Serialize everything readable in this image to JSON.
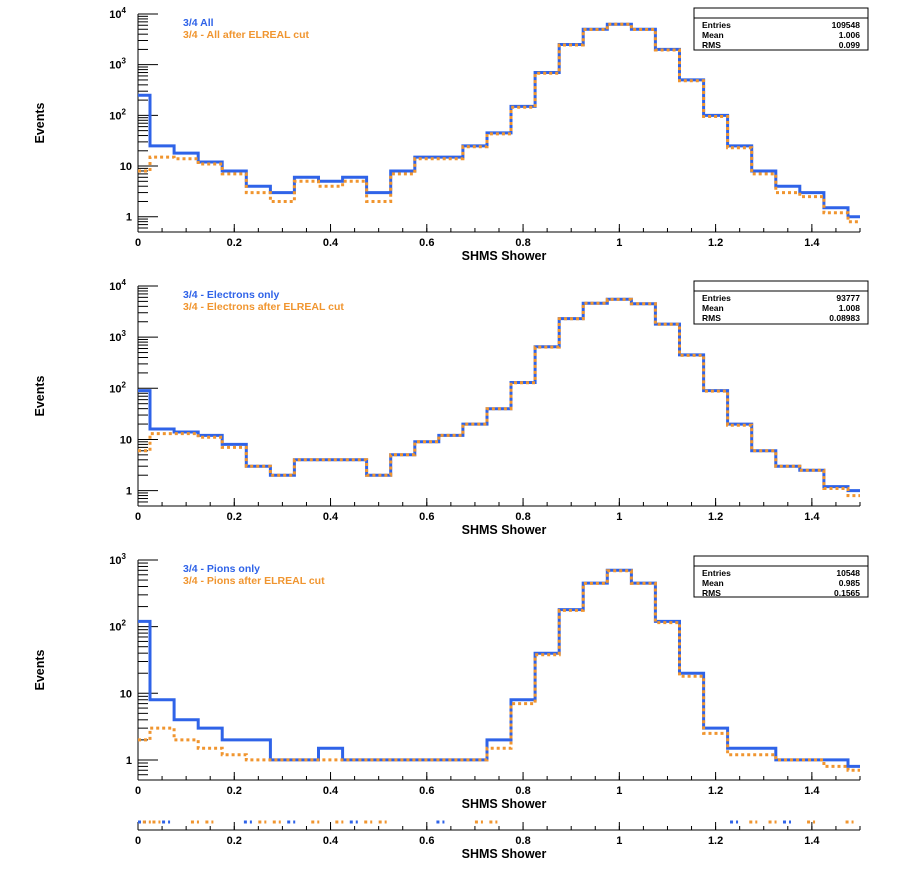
{
  "colors": {
    "all": "#2f63e8",
    "cut": "#f0952f",
    "axis": "#000000",
    "background": "#ffffff"
  },
  "chart_data": [
    {
      "type": "line",
      "panel": "all",
      "xlabel": "SHMS Shower",
      "ylabel": "Events",
      "xlim": [
        0,
        1.5
      ],
      "ylim": [
        0.5,
        10000
      ],
      "yscale": "log",
      "x_ticks": [
        "0",
        "0.2",
        "0.4",
        "0.6",
        "0.8",
        "1",
        "1.2",
        "1.4"
      ],
      "y_ticks": [
        "1",
        "10",
        "10^2",
        "10^3",
        "10^4"
      ],
      "legend_position": "top-left",
      "series": [
        {
          "name": "3/4 All",
          "style": "solid",
          "x": [
            0.0,
            0.05,
            0.1,
            0.15,
            0.2,
            0.25,
            0.3,
            0.35,
            0.4,
            0.45,
            0.5,
            0.55,
            0.6,
            0.65,
            0.7,
            0.75,
            0.8,
            0.85,
            0.9,
            0.95,
            1.0,
            1.05,
            1.1,
            1.15,
            1.2,
            1.25,
            1.3,
            1.35,
            1.4,
            1.45,
            1.5
          ],
          "y": [
            250,
            25,
            18,
            12,
            8,
            4,
            3,
            6,
            5,
            6,
            3,
            8,
            15,
            15,
            25,
            45,
            150,
            700,
            2500,
            5000,
            6300,
            5000,
            2000,
            500,
            100,
            25,
            8,
            4,
            3,
            1.5,
            1
          ]
        },
        {
          "name": "3/4 - All after ELREAL cut",
          "style": "dashed",
          "x": [
            0.0,
            0.05,
            0.1,
            0.15,
            0.2,
            0.25,
            0.3,
            0.35,
            0.4,
            0.45,
            0.5,
            0.55,
            0.6,
            0.65,
            0.7,
            0.75,
            0.8,
            0.85,
            0.9,
            0.95,
            1.0,
            1.05,
            1.1,
            1.15,
            1.2,
            1.25,
            1.3,
            1.35,
            1.4,
            1.45,
            1.5
          ],
          "y": [
            8,
            15,
            14,
            11,
            7,
            3,
            2,
            5,
            4,
            5,
            2,
            7,
            14,
            14,
            24,
            43,
            145,
            680,
            2450,
            4950,
            6250,
            4950,
            1950,
            480,
            95,
            23,
            7,
            3,
            2.5,
            1.2,
            0.8
          ]
        }
      ],
      "stats": {
        "title": "",
        "entries": "109548",
        "mean": "1.006",
        "rms": "0.099"
      }
    },
    {
      "type": "line",
      "panel": "electrons",
      "xlabel": "SHMS Shower",
      "ylabel": "Events",
      "xlim": [
        0,
        1.5
      ],
      "ylim": [
        0.5,
        10000
      ],
      "yscale": "log",
      "x_ticks": [
        "0",
        "0.2",
        "0.4",
        "0.6",
        "0.8",
        "1",
        "1.2",
        "1.4"
      ],
      "y_ticks": [
        "1",
        "10",
        "10^2",
        "10^3",
        "10^4"
      ],
      "legend_position": "top-left",
      "series": [
        {
          "name": "3/4 - Electrons only",
          "style": "solid",
          "x": [
            0.0,
            0.05,
            0.1,
            0.15,
            0.2,
            0.25,
            0.3,
            0.35,
            0.4,
            0.45,
            0.5,
            0.55,
            0.6,
            0.65,
            0.7,
            0.75,
            0.8,
            0.85,
            0.9,
            0.95,
            1.0,
            1.05,
            1.1,
            1.15,
            1.2,
            1.25,
            1.3,
            1.35,
            1.4,
            1.45,
            1.5
          ],
          "y": [
            90,
            16,
            14,
            12,
            8,
            3,
            2,
            4,
            4,
            4,
            2,
            5,
            9,
            12,
            20,
            40,
            130,
            650,
            2300,
            4600,
            5500,
            4500,
            1800,
            450,
            90,
            20,
            6,
            3,
            2.5,
            1.2,
            1
          ]
        },
        {
          "name": "3/4 - Electrons after ELREAL cut",
          "style": "dashed",
          "x": [
            0.0,
            0.05,
            0.1,
            0.15,
            0.2,
            0.25,
            0.3,
            0.35,
            0.4,
            0.45,
            0.5,
            0.55,
            0.6,
            0.65,
            0.7,
            0.75,
            0.8,
            0.85,
            0.9,
            0.95,
            1.0,
            1.05,
            1.1,
            1.15,
            1.2,
            1.25,
            1.3,
            1.35,
            1.4,
            1.45,
            1.5
          ],
          "y": [
            6,
            13,
            13,
            11,
            7,
            3,
            2,
            4,
            4,
            4,
            2,
            5,
            9,
            12,
            20,
            40,
            128,
            640,
            2280,
            4580,
            5480,
            4480,
            1780,
            440,
            88,
            19,
            6,
            3,
            2.5,
            1.1,
            0.8
          ]
        }
      ],
      "stats": {
        "title": "",
        "entries": "93777",
        "mean": "1.008",
        "rms": "0.08983"
      }
    },
    {
      "type": "line",
      "panel": "pions",
      "xlabel": "SHMS Shower",
      "ylabel": "Events",
      "xlim": [
        0,
        1.5
      ],
      "ylim": [
        0.5,
        1000
      ],
      "yscale": "log",
      "x_ticks": [
        "0",
        "0.2",
        "0.4",
        "0.6",
        "0.8",
        "1",
        "1.2",
        "1.4"
      ],
      "y_ticks": [
        "1",
        "10",
        "10^2",
        "10^3"
      ],
      "legend_position": "top-left",
      "series": [
        {
          "name": "3/4 - Pions only",
          "style": "solid",
          "x": [
            0.0,
            0.05,
            0.1,
            0.15,
            0.2,
            0.25,
            0.3,
            0.35,
            0.4,
            0.45,
            0.5,
            0.55,
            0.6,
            0.65,
            0.7,
            0.75,
            0.8,
            0.85,
            0.9,
            0.95,
            1.0,
            1.05,
            1.1,
            1.15,
            1.2,
            1.25,
            1.3,
            1.35,
            1.4,
            1.45,
            1.5
          ],
          "y": [
            120,
            8,
            4,
            3,
            2,
            2,
            1,
            1,
            1.5,
            1,
            1,
            1,
            1,
            1,
            1,
            2,
            8,
            40,
            180,
            450,
            700,
            450,
            120,
            20,
            3,
            1.5,
            1.5,
            1,
            1,
            1,
            0.8
          ]
        },
        {
          "name": "3/4 - Pions after ELREAL cut",
          "style": "dashed",
          "x": [
            0.0,
            0.05,
            0.1,
            0.15,
            0.2,
            0.25,
            0.3,
            0.35,
            0.4,
            0.45,
            0.5,
            0.55,
            0.6,
            0.65,
            0.7,
            0.75,
            0.8,
            0.85,
            0.9,
            0.95,
            1.0,
            1.05,
            1.1,
            1.15,
            1.2,
            1.25,
            1.3,
            1.35,
            1.4,
            1.45,
            1.5
          ],
          "y": [
            2,
            3,
            2,
            1.5,
            1.2,
            1,
            1,
            1,
            1,
            1,
            1,
            1,
            1,
            1,
            1,
            1.5,
            7,
            38,
            175,
            445,
            690,
            445,
            115,
            18,
            2.5,
            1.2,
            1.2,
            1,
            1,
            0.8,
            0.7
          ]
        }
      ],
      "stats": {
        "title": "",
        "entries": "10548",
        "mean": "0.985",
        "rms": "0.1565"
      }
    },
    {
      "type": "line",
      "panel": "bottom-strip",
      "xlabel": "SHMS Shower",
      "ylabel": "",
      "xlim": [
        0,
        1.5
      ],
      "x_ticks": [
        "0",
        "0.2",
        "0.4",
        "0.6",
        "0.8",
        "1",
        "1.2",
        "1.4"
      ],
      "series": []
    }
  ]
}
